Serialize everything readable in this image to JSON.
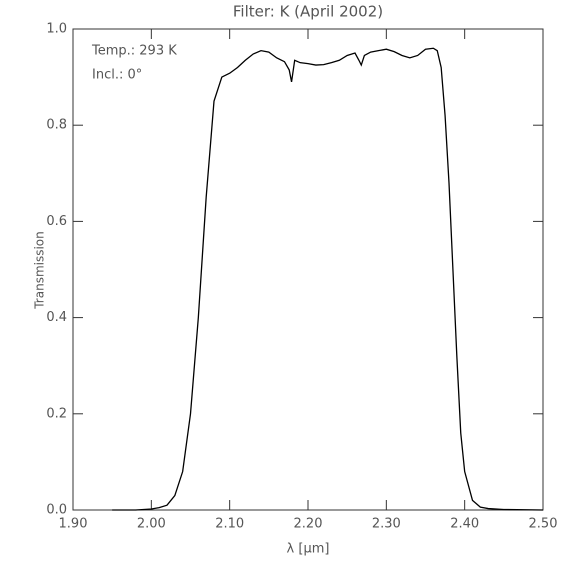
{
  "chart_data": {
    "type": "line",
    "title": "Filter: K        (April 2002)",
    "annotations": [
      "Temp.: 293 K",
      "Incl.: 0°"
    ],
    "x_label": "λ [μm]",
    "y_label": "Transmission",
    "xlim": [
      1.9,
      2.5
    ],
    "ylim": [
      0,
      1
    ],
    "xticks": [
      {
        "value": 1.9,
        "label": "1.90"
      },
      {
        "value": 2.0,
        "label": "2.00"
      },
      {
        "value": 2.1,
        "label": "2.10"
      },
      {
        "value": 2.2,
        "label": "2.20"
      },
      {
        "value": 2.3,
        "label": "2.30"
      },
      {
        "value": 2.4,
        "label": "2.40"
      },
      {
        "value": 2.5,
        "label": "2.50"
      }
    ],
    "yticks": [
      {
        "value": 0,
        "label": "0.0"
      },
      0.2,
      0.4,
      0.6,
      0.8,
      {
        "value": 1,
        "label": "1.0"
      }
    ],
    "color": "#000000",
    "x": [
      1.95,
      1.98,
      2.0,
      2.01,
      2.02,
      2.03,
      2.04,
      2.05,
      2.06,
      2.07,
      2.08,
      2.09,
      2.1,
      2.11,
      2.12,
      2.13,
      2.14,
      2.15,
      2.16,
      2.17,
      2.176,
      2.179,
      2.183,
      2.19,
      2.2,
      2.21,
      2.22,
      2.23,
      2.24,
      2.25,
      2.26,
      2.265,
      2.268,
      2.272,
      2.28,
      2.29,
      2.3,
      2.31,
      2.32,
      2.33,
      2.34,
      2.35,
      2.36,
      2.365,
      2.37,
      2.375,
      2.38,
      2.385,
      2.39,
      2.395,
      2.4,
      2.41,
      2.42,
      2.43,
      2.45,
      2.5
    ],
    "values": [
      0.0,
      0.0,
      0.002,
      0.005,
      0.01,
      0.03,
      0.08,
      0.2,
      0.4,
      0.65,
      0.85,
      0.9,
      0.908,
      0.92,
      0.935,
      0.948,
      0.955,
      0.952,
      0.94,
      0.932,
      0.915,
      0.89,
      0.935,
      0.93,
      0.928,
      0.925,
      0.926,
      0.93,
      0.935,
      0.945,
      0.95,
      0.935,
      0.925,
      0.945,
      0.952,
      0.955,
      0.958,
      0.953,
      0.945,
      0.94,
      0.945,
      0.958,
      0.96,
      0.955,
      0.92,
      0.82,
      0.68,
      0.5,
      0.32,
      0.16,
      0.08,
      0.02,
      0.006,
      0.003,
      0.001,
      0.0
    ]
  }
}
